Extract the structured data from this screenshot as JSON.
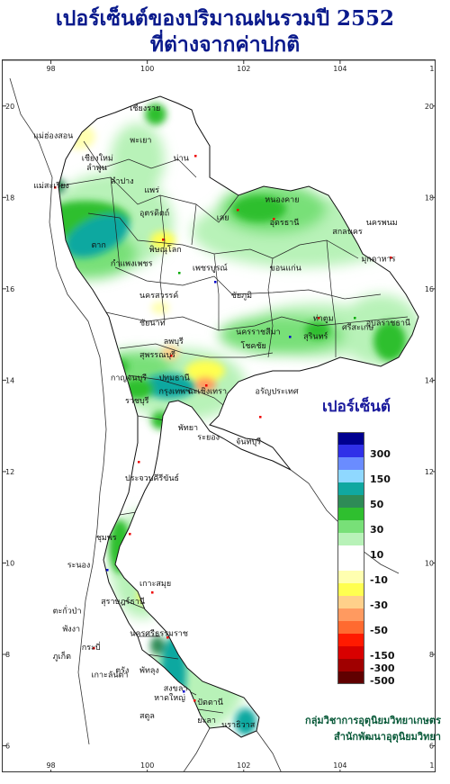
{
  "title": {
    "line1": "เปอร์เซ็นต์ของปริมาณฝนรวมปี  2552",
    "line2": "ที่ต่างจากค่าปกติ"
  },
  "map": {
    "lon_labels": [
      "98",
      "100",
      "102",
      "104",
      "106"
    ],
    "lat_labels": [
      "20",
      "18",
      "16",
      "14",
      "12",
      "10",
      "8",
      "6"
    ],
    "provinces": [
      {
        "name": "เชียงราย",
        "lon": 99.9,
        "lat": 19.9
      },
      {
        "name": "แม่ฮ่องสอน",
        "lon": 97.9,
        "lat": 19.3
      },
      {
        "name": "เชียงใหม่",
        "lon": 98.9,
        "lat": 18.8
      },
      {
        "name": "พะเยา",
        "lon": 99.9,
        "lat": 19.2
      },
      {
        "name": "น่าน",
        "lon": 100.8,
        "lat": 18.8
      },
      {
        "name": "ลำพูน",
        "lon": 99.0,
        "lat": 18.6
      },
      {
        "name": "ลำปาง",
        "lon": 99.5,
        "lat": 18.3
      },
      {
        "name": "แพร่",
        "lon": 100.2,
        "lat": 18.1
      },
      {
        "name": "แม่สะเรียง",
        "lon": 97.9,
        "lat": 18.2
      },
      {
        "name": "อุตรดิตถ์",
        "lon": 100.1,
        "lat": 17.6
      },
      {
        "name": "ตาก",
        "lon": 99.1,
        "lat": 16.9
      },
      {
        "name": "พิษณุโลก",
        "lon": 100.3,
        "lat": 16.8
      },
      {
        "name": "กำแพงเพชร",
        "lon": 99.5,
        "lat": 16.5
      },
      {
        "name": "หนองคาย",
        "lon": 102.7,
        "lat": 17.9
      },
      {
        "name": "อุดรธานี",
        "lon": 102.8,
        "lat": 17.4
      },
      {
        "name": "เลย",
        "lon": 101.7,
        "lat": 17.5
      },
      {
        "name": "นครพนม",
        "lon": 104.8,
        "lat": 17.4
      },
      {
        "name": "สกลนคร",
        "lon": 104.1,
        "lat": 17.2
      },
      {
        "name": "มุกดาหาร",
        "lon": 104.7,
        "lat": 16.6
      },
      {
        "name": "เพชรบูรณ์",
        "lon": 101.2,
        "lat": 16.4
      },
      {
        "name": "ขอนแก่น",
        "lon": 102.8,
        "lat": 16.4
      },
      {
        "name": "นครสวรรค์",
        "lon": 100.1,
        "lat": 15.8
      },
      {
        "name": "ชัยภูมิ",
        "lon": 102.0,
        "lat": 15.8
      },
      {
        "name": "อุบลราชธานี",
        "lon": 104.8,
        "lat": 15.2
      },
      {
        "name": "ชัยนาท",
        "lon": 100.1,
        "lat": 15.2
      },
      {
        "name": "ลพบุรี",
        "lon": 100.6,
        "lat": 14.8
      },
      {
        "name": "นครราชสีมา",
        "lon": 102.1,
        "lat": 15.0
      },
      {
        "name": "สุรินทร์",
        "lon": 103.5,
        "lat": 14.9
      },
      {
        "name": "ศรีสะเกษ",
        "lon": 104.3,
        "lat": 15.1
      },
      {
        "name": "ท่าตูม",
        "lon": 103.7,
        "lat": 15.3
      },
      {
        "name": "โชคชัย",
        "lon": 102.2,
        "lat": 14.7
      },
      {
        "name": "สุพรรณบุรี",
        "lon": 100.1,
        "lat": 14.5
      },
      {
        "name": "กาญจนบุรี",
        "lon": 99.5,
        "lat": 14.0
      },
      {
        "name": "ปทุมธานี",
        "lon": 100.5,
        "lat": 14.0
      },
      {
        "name": "ราชบุรี",
        "lon": 99.8,
        "lat": 13.5
      },
      {
        "name": "กรุงเทพฯ",
        "lon": 100.5,
        "lat": 13.7
      },
      {
        "name": "ฉะเชิงเทรา",
        "lon": 101.1,
        "lat": 13.7
      },
      {
        "name": "อรัญประเทศ",
        "lon": 102.5,
        "lat": 13.7
      },
      {
        "name": "พัทยา",
        "lon": 100.9,
        "lat": 12.9
      },
      {
        "name": "ระยอง",
        "lon": 101.3,
        "lat": 12.7
      },
      {
        "name": "จันทบุรี",
        "lon": 102.1,
        "lat": 12.6
      },
      {
        "name": "ประจวบคีรีขันธ์",
        "lon": 99.8,
        "lat": 11.8
      },
      {
        "name": "ชุมพร",
        "lon": 99.2,
        "lat": 10.5
      },
      {
        "name": "ระนอง",
        "lon": 98.6,
        "lat": 9.9
      },
      {
        "name": "เกาะสมุย",
        "lon": 100.1,
        "lat": 9.5
      },
      {
        "name": "สุราษฎร์ธานี",
        "lon": 99.3,
        "lat": 9.1
      },
      {
        "name": "ตะกั่วป่า",
        "lon": 98.3,
        "lat": 8.9
      },
      {
        "name": "พังงา",
        "lon": 98.5,
        "lat": 8.5
      },
      {
        "name": "นครศรีธรรมราช",
        "lon": 99.9,
        "lat": 8.4
      },
      {
        "name": "ภูเก็ต",
        "lon": 98.3,
        "lat": 7.9
      },
      {
        "name": "กระบี่",
        "lon": 98.9,
        "lat": 8.1
      },
      {
        "name": "ตรัง",
        "lon": 99.6,
        "lat": 7.6
      },
      {
        "name": "พัทลุง",
        "lon": 100.1,
        "lat": 7.6
      },
      {
        "name": "สงขลา",
        "lon": 100.6,
        "lat": 7.2
      },
      {
        "name": "เกาะลันตา",
        "lon": 99.1,
        "lat": 7.5
      },
      {
        "name": "หาดใหญ่",
        "lon": 100.4,
        "lat": 7.0
      },
      {
        "name": "สตูล",
        "lon": 100.1,
        "lat": 6.6
      },
      {
        "name": "ปัตตานี",
        "lon": 101.3,
        "lat": 6.9
      },
      {
        "name": "ยะลา",
        "lon": 101.3,
        "lat": 6.5
      },
      {
        "name": "นราธิวาส",
        "lon": 101.8,
        "lat": 6.4
      }
    ]
  },
  "legend": {
    "title": "เปอร์เซ็นต์",
    "colors": [
      "#000090",
      "#3030e8",
      "#6a8cff",
      "#8fd8ff",
      "#10a8a0",
      "#2e8b57",
      "#2fbf2f",
      "#78e078",
      "#b8f2b8",
      "#ffffff",
      "#ffffff",
      "#ffffb0",
      "#ffff50",
      "#ffd08a",
      "#ff9a60",
      "#ff6a30",
      "#ff1a00",
      "#d80000",
      "#a00000",
      "#600000"
    ],
    "labels": [
      "300",
      "150",
      "50",
      "30",
      "10",
      "-10",
      "-30",
      "-50",
      "-150",
      "-300",
      "-500"
    ]
  },
  "credits": {
    "line1": "กลุ่มวิชาการอุตุนิยมวิทยาเกษตร",
    "line2": "สำนักพัฒนาอุตุนิยมวิทยา"
  },
  "colors": {
    "title": "#0a1a8c",
    "land_base": "#b8f2b8",
    "strong_green": "#2fbf2f",
    "teal": "#10a8a0",
    "yellow": "#ffff60",
    "orange": "#ff9a60",
    "boundary": "#222222"
  }
}
